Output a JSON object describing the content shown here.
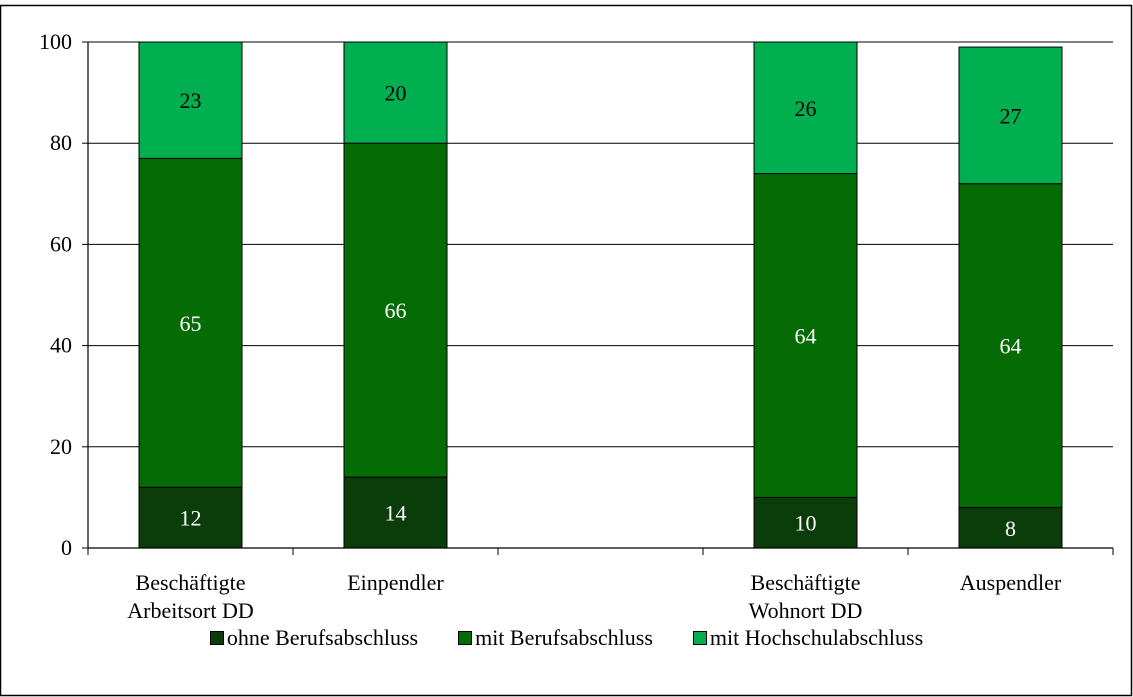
{
  "chart_data": {
    "type": "bar",
    "stacked": true,
    "categories": [
      [
        "Beschäftigte",
        "Arbeitsort DD"
      ],
      [
        "Einpendler"
      ],
      [],
      [
        "Beschäftigte",
        "Wohnort DD"
      ],
      [
        "Auspendler"
      ]
    ],
    "series": [
      {
        "name": "ohne Berufsabschluss",
        "color": "#0a3d0a",
        "label_color": "#ffffff",
        "values": [
          12,
          14,
          null,
          10,
          8
        ]
      },
      {
        "name": "mit Berufsabschluss",
        "color": "#056b05",
        "label_color": "#ffffff",
        "values": [
          65,
          66,
          null,
          64,
          64
        ]
      },
      {
        "name": "mit Hochschulabschluss",
        "color": "#00b050",
        "label_color": "#000000",
        "values": [
          23,
          20,
          null,
          26,
          27
        ]
      }
    ],
    "ylim": [
      0,
      100
    ],
    "yticks": [
      0,
      20,
      40,
      60,
      80,
      100
    ],
    "grid": true,
    "legend": "bottom",
    "xlabel": "",
    "ylabel": "",
    "title": ""
  }
}
